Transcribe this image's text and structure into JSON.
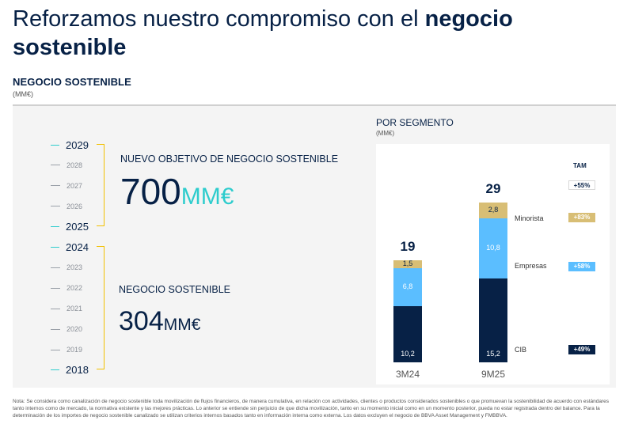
{
  "header": {
    "title_regular": "Reforzamos nuestro compromiso con el ",
    "title_bold": "negocio sostenible",
    "subtitle": "NEGOCIO SOSTENIBLE",
    "unit": "(MM€)"
  },
  "timeline": {
    "years": [
      "2029",
      "2028",
      "2027",
      "2026",
      "2025",
      "2024",
      "2023",
      "2022",
      "2021",
      "2020",
      "2019",
      "2018"
    ]
  },
  "new_target": {
    "label": "NUEVO OBJETIVO DE NEGOCIO SOSTENIBLE",
    "value": "700",
    "unit": "MM€"
  },
  "sustainable_business": {
    "label": "NEGOCIO SOSTENIBLE",
    "value": "304",
    "unit": "MM€"
  },
  "segment_chart": {
    "title": "POR SEGMENTO",
    "unit": "(MM€)",
    "tam_header": "TAM",
    "total_tam": "+55%",
    "segments": [
      {
        "name": "Minorista",
        "tam": "+83%",
        "color": "#d8be75"
      },
      {
        "name": "Empresas",
        "tam": "+58%",
        "color": "#5bbeff"
      },
      {
        "name": "CIB",
        "tam": "+49%",
        "color": "#072146"
      }
    ]
  },
  "chart_data": {
    "type": "bar",
    "stacked": true,
    "categories": [
      "3M24",
      "9M25"
    ],
    "series": [
      {
        "name": "CIB",
        "values": [
          10.2,
          15.2
        ],
        "labels": [
          "10,2",
          "15,2"
        ]
      },
      {
        "name": "Empresas",
        "values": [
          6.8,
          10.8
        ],
        "labels": [
          "6,8",
          "10,8"
        ]
      },
      {
        "name": "Minorista",
        "values": [
          1.5,
          2.8
        ],
        "labels": [
          "1,5",
          "2,8"
        ]
      }
    ],
    "totals": [
      "19",
      "29"
    ],
    "title": "POR SEGMENTO",
    "ylabel": "(MM€)"
  },
  "footnote": "Nota: Se considera como canalización de negocio sostenible toda movilización de flujos financieros, de manera cumulativa, en relación con actividades, clientes o productos considerados sostenibles o que promuevan la sostenibilidad de acuerdo con estándares tanto internos como de mercado, la normativa existente y las mejores prácticas. Lo anterior se entiende sin perjuicio de que dicha movilización, tanto en su momento inicial como en un momento posterior, pueda no estar registrada dentro del balance. Para la determinación de los importes de negocio sostenible canalizado se utilizan criterios internos basados tanto en información interna como externa. Los datos excluyen el negocio de BBVA Asset Management y FMBBVA."
}
